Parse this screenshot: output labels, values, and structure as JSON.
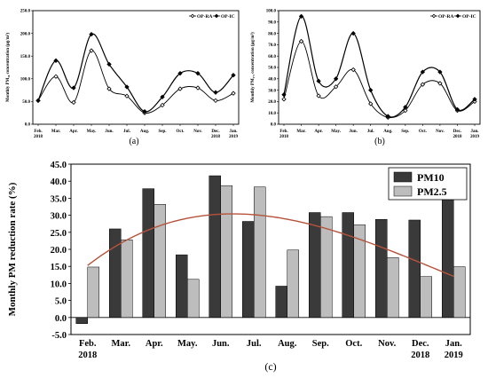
{
  "chart_data": [
    {
      "type": "line",
      "panel_label": "(a)",
      "ylabel": "Monthly PM₁₀ concentration (µg/m³)",
      "ylim": [
        0,
        250
      ],
      "yticks": [
        "0.0",
        "50.0",
        "100.0",
        "150.0",
        "200.0",
        "250.0"
      ],
      "categories": [
        "Feb.|2018",
        "Mar.",
        "Apr.",
        "May.",
        "Jun.",
        "Jul.",
        "Aug.",
        "Sep.",
        "Oct.",
        "Nov.",
        "Dec.|2018",
        "Jan.|2019"
      ],
      "legend_placement": "top-right",
      "series": [
        {
          "name": "OP-RA",
          "marker": "open-diamond",
          "values": [
            52,
            105,
            48,
            162,
            78,
            62,
            25,
            42,
            78,
            80,
            52,
            68
          ]
        },
        {
          "name": "OP-IC",
          "marker": "filled-diamond",
          "values": [
            52,
            140,
            80,
            198,
            132,
            82,
            28,
            60,
            112,
            112,
            70,
            108
          ]
        }
      ]
    },
    {
      "type": "line",
      "panel_label": "(b)",
      "ylabel": "Monthly PM₂.₅ concentration (µg/m³)",
      "ylim": [
        0,
        100
      ],
      "yticks": [
        "0.0",
        "10.0",
        "20.0",
        "30.0",
        "40.0",
        "50.0",
        "60.0",
        "70.0",
        "80.0",
        "90.0",
        "100.0"
      ],
      "categories": [
        "Feb.|2018",
        "Mar.",
        "Apr.",
        "May.",
        "Jun.",
        "Jul.",
        "Aug.",
        "Sep.",
        "Oct.",
        "Nov.",
        "Dec.|2018",
        "Jan.|2019"
      ],
      "legend_placement": "top-right",
      "series": [
        {
          "name": "OP-RA",
          "marker": "open-diamond",
          "values": [
            22,
            73,
            25,
            33,
            48,
            18,
            6,
            12,
            35,
            36,
            12,
            20
          ]
        },
        {
          "name": "OP-IC",
          "marker": "filled-diamond",
          "values": [
            26,
            95,
            38,
            40,
            80,
            30,
            7,
            15,
            46,
            46,
            13,
            22
          ]
        }
      ]
    },
    {
      "type": "bar",
      "panel_label": "(c)",
      "ylabel": "Monthly PM reduction rate (%)",
      "ylim": [
        -5,
        45
      ],
      "yticks": [
        "-5.0",
        "0.0",
        "5.0",
        "10.0",
        "15.0",
        "20.0",
        "25.0",
        "30.0",
        "35.0",
        "40.0",
        "45.0"
      ],
      "categories": [
        "Feb.|2018",
        "Mar.",
        "Apr.",
        "May.",
        "Jun.",
        "Jul.",
        "Aug.",
        "Sep.",
        "Oct.",
        "Nov.",
        "Dec.|2018",
        "Jan.|2019"
      ],
      "legend_placement": "top-right",
      "series": [
        {
          "name": "PM10",
          "color": "#3a3a3a",
          "values": [
            -1.8,
            26.0,
            37.8,
            18.4,
            41.6,
            28.2,
            9.2,
            30.8,
            30.8,
            28.8,
            28.6,
            35.6
          ]
        },
        {
          "name": "PM2.5",
          "color": "#bdbdbd",
          "values": [
            14.8,
            22.8,
            33.2,
            11.2,
            38.7,
            38.3,
            19.8,
            29.6,
            27.2,
            17.6,
            12.0,
            14.9
          ]
        }
      ],
      "trend_color": "#b5533a"
    }
  ]
}
